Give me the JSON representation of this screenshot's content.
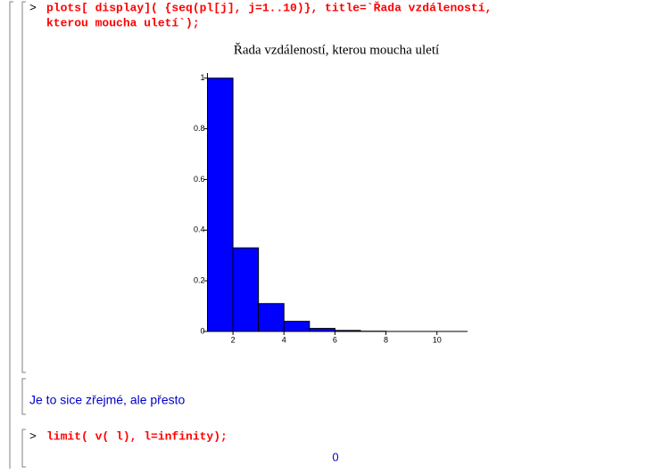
{
  "prompt": ">",
  "input_1": [
    "plots[ display]( {seq(pl[j], j=1..10)}, title=`Řada vzdáleností,",
    "kterou moucha uletí`);"
  ],
  "chart_data": {
    "type": "histogram",
    "title": "Řada vzdáleností, kterou moucha uletí",
    "bins": [
      1,
      2,
      3,
      4,
      5,
      6,
      7,
      8,
      9,
      10,
      11
    ],
    "values": [
      1,
      0.33,
      0.11,
      0.04,
      0.012,
      0.004,
      0.001,
      0,
      0,
      0
    ],
    "color": "#0000ff",
    "xlim": [
      1,
      11.2
    ],
    "xticks": [
      2,
      4,
      6,
      8,
      10
    ],
    "ylim": [
      0,
      1.02
    ],
    "yticks": [
      0,
      0.2,
      0.4,
      0.6,
      0.8,
      1
    ]
  },
  "text": "Je to sice zřejmé, ale přesto",
  "input_2": "limit( v( l), l=infinity);",
  "output": "0"
}
